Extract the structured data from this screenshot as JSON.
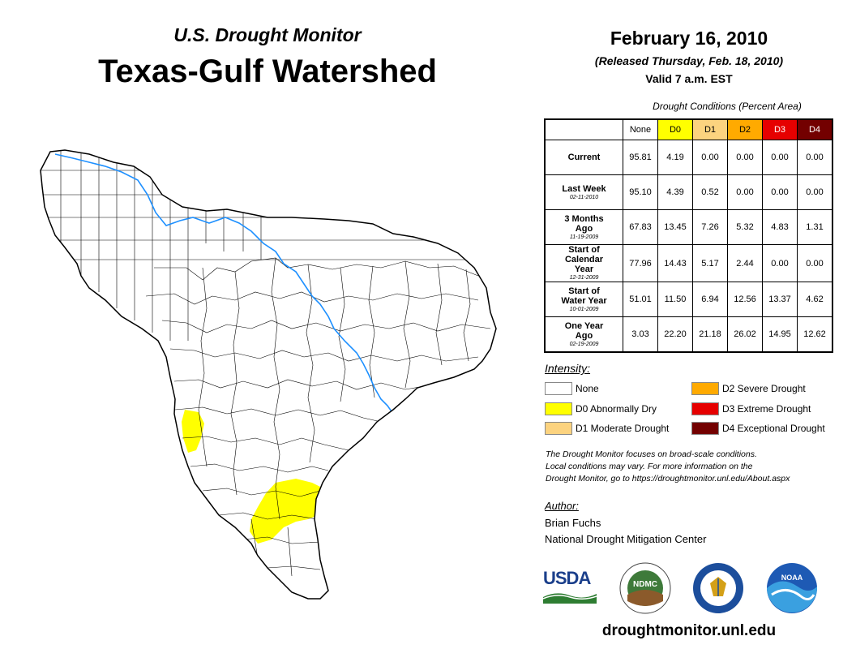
{
  "header": {
    "subtitle": "U.S. Drought Monitor",
    "title": "Texas-Gulf Watershed",
    "date": "February 16, 2010",
    "released": "(Released Thursday, Feb. 18, 2010)",
    "valid": "Valid 7 a.m. EST"
  },
  "table": {
    "caption": "Drought Conditions (Percent Area)",
    "columns": [
      {
        "label": "None",
        "color": "#ffffff",
        "text_color": "#000000"
      },
      {
        "label": "D0",
        "color": "#ffff00",
        "text_color": "#000000"
      },
      {
        "label": "D1",
        "color": "#fcd37f",
        "text_color": "#000000"
      },
      {
        "label": "D2",
        "color": "#ffaa00",
        "text_color": "#000000"
      },
      {
        "label": "D3",
        "color": "#e60000",
        "text_color": "#ffffff"
      },
      {
        "label": "D4",
        "color": "#730000",
        "text_color": "#ffffff"
      }
    ],
    "rows": [
      {
        "label": "Current",
        "date": "",
        "values": [
          "95.81",
          "4.19",
          "0.00",
          "0.00",
          "0.00",
          "0.00"
        ]
      },
      {
        "label": "Last Week",
        "date": "02-11-2010",
        "values": [
          "95.10",
          "4.39",
          "0.52",
          "0.00",
          "0.00",
          "0.00"
        ]
      },
      {
        "label": "3 Months Ago",
        "date": "11-19-2009",
        "values": [
          "67.83",
          "13.45",
          "7.26",
          "5.32",
          "4.83",
          "1.31"
        ]
      },
      {
        "label": "Start of Calendar Year",
        "date": "12-31-2009",
        "values": [
          "77.96",
          "14.43",
          "5.17",
          "2.44",
          "0.00",
          "0.00"
        ]
      },
      {
        "label": "Start of Water Year",
        "date": "10-01-2009",
        "values": [
          "51.01",
          "11.50",
          "6.94",
          "12.56",
          "13.37",
          "4.62"
        ]
      },
      {
        "label": "One Year Ago",
        "date": "02-19-2009",
        "values": [
          "3.03",
          "22.20",
          "21.18",
          "26.02",
          "14.95",
          "12.62"
        ]
      }
    ]
  },
  "legend": {
    "title": "Intensity:",
    "items": [
      {
        "label": "None",
        "color": "#ffffff"
      },
      {
        "label": "D0 Abnormally Dry",
        "color": "#ffff00"
      },
      {
        "label": "D1 Moderate Drought",
        "color": "#fcd37f"
      },
      {
        "label": "D2 Severe Drought",
        "color": "#ffaa00"
      },
      {
        "label": "D3 Extreme Drought",
        "color": "#e60000"
      },
      {
        "label": "D4 Exceptional Drought",
        "color": "#730000"
      }
    ]
  },
  "note": {
    "line1": "The Drought Monitor focuses on broad-scale conditions.",
    "line2": "Local conditions may vary. For more information on the",
    "line3": "Drought Monitor, go to https://droughtmonitor.unl.edu/About.aspx"
  },
  "author": {
    "label": "Author:",
    "name": "Brian Fuchs",
    "org": "National Drought Mitigation Center"
  },
  "logos": {
    "usda": "USDA",
    "ndmc": "NDMC",
    "noaa": "NOAA"
  },
  "footer": {
    "website": "droughtmonitor.unl.edu"
  },
  "map": {
    "river_color": "#1e90ff",
    "d0_color": "#ffff00",
    "outline_color": "#000000"
  }
}
